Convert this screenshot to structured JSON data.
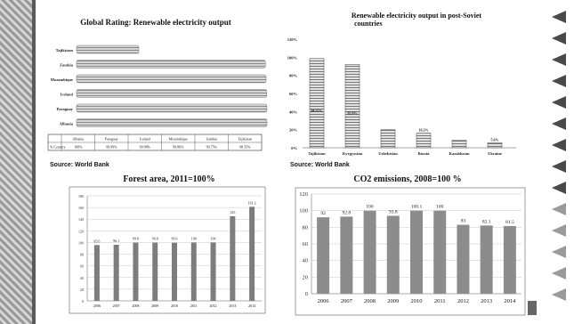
{
  "source_left": "Source: World Bank",
  "source_right": "Source: World Bank",
  "chart_data": [
    {
      "type": "bar",
      "orientation": "horizontal",
      "title": "Global Rating: Renewable electricity output",
      "categories": [
        "Albania",
        "Paraguay",
        "Iceland",
        "Mozambique",
        "Zambia",
        "Tajikistan"
      ],
      "values": [
        100,
        99.99,
        99.98,
        99.86,
        99.75,
        98.55
      ],
      "table_row_label": "% Country",
      "table_values": [
        "100%",
        "99.99%",
        "99.98%",
        "99.86%",
        "99.75%",
        "98.55%"
      ],
      "grid": false
    },
    {
      "type": "bar",
      "title": "Renewable electricity output in post-Soviet countries",
      "categories": [
        "Tajikistan",
        "Kyrgyzstan",
        "Uzbekistan",
        "Russia",
        "Kazakhstan",
        "Ukraine"
      ],
      "values": [
        98.55,
        92.0,
        20.0,
        16.2,
        8.3,
        5.6
      ],
      "bar_labels": [
        "98.55%",
        "92.0%",
        "",
        "16.2%",
        "",
        "5.6%"
      ],
      "yticks": [
        "0%",
        "20%",
        "40%",
        "60%",
        "80%",
        "100%",
        "120%"
      ],
      "ylim": [
        0,
        120
      ],
      "grid": false
    },
    {
      "type": "bar",
      "title": "Forest area, 2011=100%",
      "categories": [
        "2006",
        "2007",
        "2008",
        "2009",
        "2010",
        "2011",
        "2012",
        "2013",
        "2014"
      ],
      "values": [
        95.6,
        96.1,
        99.8,
        99.8,
        99.6,
        100,
        100,
        145,
        161.2
      ],
      "bar_labels": [
        "95.6",
        "96.1",
        "99.8",
        "99.8",
        "99.6",
        "100",
        "100",
        "145",
        "161.2"
      ],
      "yticks": [
        "0",
        "20",
        "40",
        "60",
        "80",
        "100",
        "120",
        "140",
        "160",
        "180"
      ],
      "ylim": [
        0,
        180
      ],
      "grid": true
    },
    {
      "type": "bar",
      "title": "CO2 emissions, 2008=100 %",
      "categories": [
        "2006",
        "2007",
        "2008",
        "2009",
        "2010",
        "2011",
        "2012",
        "2013",
        "2014"
      ],
      "values": [
        92,
        92.8,
        100,
        93.8,
        100.1,
        100,
        83,
        82.1,
        81.5
      ],
      "bar_labels": [
        "92",
        "92.8",
        "100",
        "93.8",
        "100.1",
        "100",
        "83",
        "82.1",
        "81.5"
      ],
      "yticks": [
        "0",
        "20",
        "40",
        "60",
        "80",
        "100",
        "120"
      ],
      "ylim": [
        0,
        120
      ],
      "grid": true
    }
  ]
}
